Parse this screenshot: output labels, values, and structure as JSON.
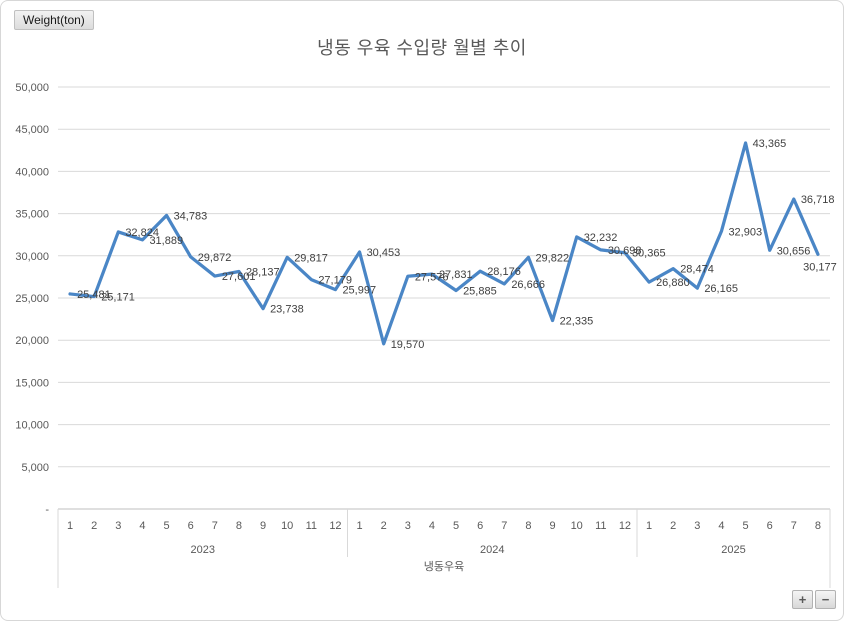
{
  "field_button": {
    "label": "Weight(ton)"
  },
  "chart_data": {
    "type": "line",
    "title": "냉동 우육 수입량 월별 추이",
    "x_axis_title": "냉동우육",
    "series_name": "냉동우육",
    "ylim": [
      0,
      50000
    ],
    "ytick_step": 5000,
    "y_zero_label": "-",
    "grid": true,
    "legend": "none",
    "data_labels": true,
    "label_position": "right",
    "last_label_position": "below",
    "colors": {
      "line": "#4a86c6",
      "grid": "#d9d9d9",
      "axis_line": "#bfbfbf",
      "axis_text": "#595959",
      "label_text": "#404040",
      "title_text": "#595959"
    },
    "groups": [
      {
        "year": "2023",
        "months": [
          "1",
          "2",
          "3",
          "4",
          "5",
          "6",
          "7",
          "8",
          "9",
          "10",
          "11",
          "12"
        ],
        "values": [
          25481,
          25171,
          32824,
          31889,
          34783,
          29872,
          27601,
          28137,
          23738,
          29817,
          27179,
          25997
        ]
      },
      {
        "year": "2024",
        "months": [
          "1",
          "2",
          "3",
          "4",
          "5",
          "6",
          "7",
          "8",
          "9",
          "10",
          "11",
          "12"
        ],
        "values": [
          30453,
          19570,
          27576,
          27831,
          25885,
          28176,
          26666,
          29822,
          22335,
          32232,
          30698,
          30365
        ]
      },
      {
        "year": "2025",
        "months": [
          "1",
          "2",
          "3",
          "4",
          "5",
          "6",
          "7",
          "8"
        ],
        "values": [
          26880,
          28474,
          26165,
          32903,
          43365,
          30656,
          36718,
          30177
        ]
      }
    ]
  },
  "zoom_controls": {
    "zoom_in": "+",
    "zoom_out": "−"
  }
}
